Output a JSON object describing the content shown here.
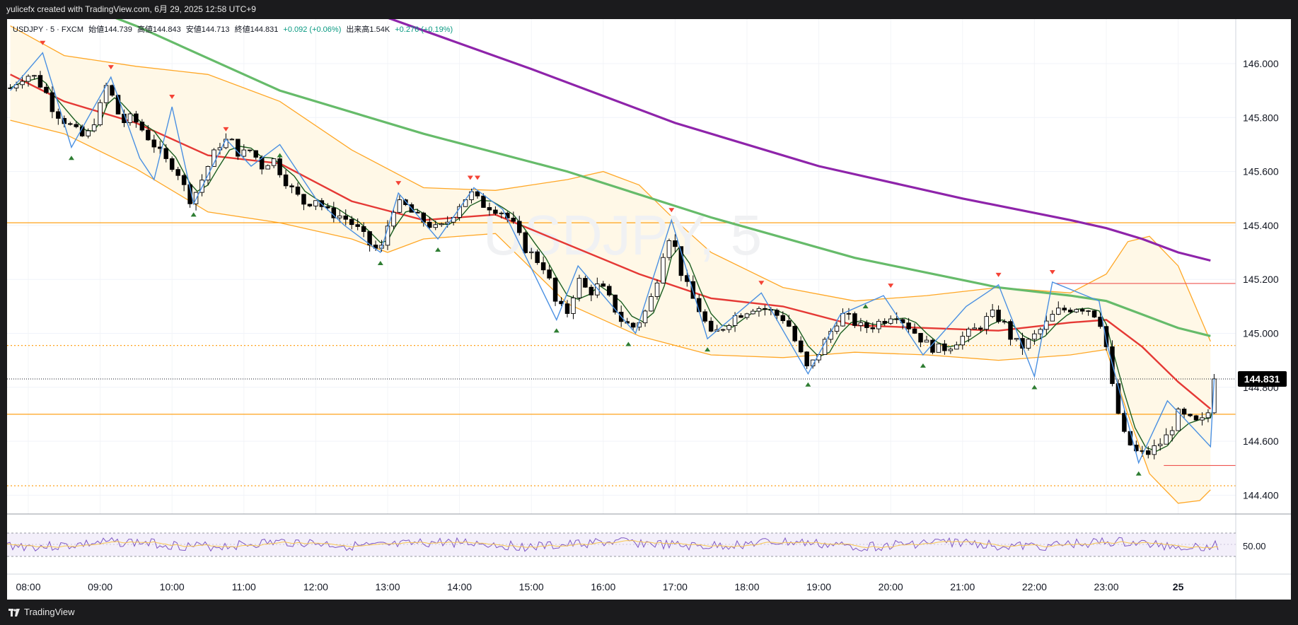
{
  "header": {
    "attribution": "yulicefx created with TradingView.com, 6月 29, 2025 12:58 UTC+9"
  },
  "legend": {
    "symbol": "USDJPY · 5 · FXCM",
    "open": "始値144.739",
    "high": "高値144.843",
    "low": "安値144.713",
    "close": "終値144.831",
    "change": "+0.092 (+0.06%)",
    "volume": "出来高1.54K",
    "volume_change": "+0.276 (+0.19%)"
  },
  "watermark": "USDJPY, 5",
  "footer": {
    "brand": "TradingView"
  },
  "last_price_label": "144.831",
  "rsi_label": "50.00",
  "colors": {
    "up_candle": "#ffffff",
    "down_candle": "#000000",
    "ma_fast": "#1b5e20",
    "ma_mid": "#e53935",
    "ma_slow": "#66bb6a",
    "ma_long": "#8e24aa",
    "bollinger": "#ffa726",
    "zigzag": "#4a90e2",
    "signal_up": "#2e7d32",
    "signal_down": "#f44336",
    "horizontal_level": "#ff9800"
  },
  "chart_data": {
    "type": "candlestick",
    "symbol": "USDJPY",
    "timeframe": "5",
    "x_ticks": [
      "08:00",
      "09:00",
      "10:00",
      "11:00",
      "12:00",
      "13:00",
      "14:00",
      "15:00",
      "16:00",
      "17:00",
      "18:00",
      "19:00",
      "20:00",
      "21:00",
      "22:00",
      "23:00",
      "25"
    ],
    "y_ticks": [
      146.0,
      145.8,
      145.6,
      145.4,
      145.2,
      145.0,
      144.8,
      144.6,
      144.4
    ],
    "y_tick_labels": [
      "146.000",
      "145.800",
      "145.600",
      "145.400",
      "145.200",
      "145.000",
      "144.800",
      "144.600",
      "144.400"
    ],
    "ylim": [
      144.34,
      146.2
    ],
    "xlim_hours": [
      7.7,
      24.9
    ],
    "last_price": 144.831,
    "horizontal_levels": [
      {
        "value": 145.41,
        "style": "solid"
      },
      {
        "value": 144.7,
        "style": "solid"
      },
      {
        "value": 144.955,
        "style": "dotted"
      },
      {
        "value": 144.435,
        "style": "dotted"
      },
      {
        "value": 145.185,
        "style": "solid-short"
      },
      {
        "value": 144.51,
        "style": "solid-short"
      }
    ],
    "close_path": [
      [
        7.75,
        145.91
      ],
      [
        7.9,
        145.95
      ],
      [
        8.05,
        145.96
      ],
      [
        8.15,
        145.93
      ],
      [
        8.25,
        145.89
      ],
      [
        8.35,
        145.83
      ],
      [
        8.5,
        145.79
      ],
      [
        8.65,
        145.75
      ],
      [
        8.8,
        145.72
      ],
      [
        8.9,
        145.78
      ],
      [
        9.0,
        145.84
      ],
      [
        9.1,
        145.93
      ],
      [
        9.2,
        145.85
      ],
      [
        9.3,
        145.78
      ],
      [
        9.45,
        145.8
      ],
      [
        9.6,
        145.75
      ],
      [
        9.75,
        145.7
      ],
      [
        9.9,
        145.64
      ],
      [
        10.05,
        145.62
      ],
      [
        10.15,
        145.55
      ],
      [
        10.25,
        145.5
      ],
      [
        10.35,
        145.53
      ],
      [
        10.5,
        145.62
      ],
      [
        10.65,
        145.7
      ],
      [
        10.8,
        145.72
      ],
      [
        10.95,
        145.66
      ],
      [
        11.1,
        145.68
      ],
      [
        11.25,
        145.62
      ],
      [
        11.4,
        145.65
      ],
      [
        11.55,
        145.58
      ],
      [
        11.7,
        145.52
      ],
      [
        11.85,
        145.48
      ],
      [
        12.0,
        145.5
      ],
      [
        12.15,
        145.45
      ],
      [
        12.3,
        145.44
      ],
      [
        12.45,
        145.42
      ],
      [
        12.6,
        145.38
      ],
      [
        12.75,
        145.33
      ],
      [
        12.9,
        145.3
      ],
      [
        13.0,
        145.4
      ],
      [
        13.1,
        145.48
      ],
      [
        13.25,
        145.47
      ],
      [
        13.4,
        145.43
      ],
      [
        13.55,
        145.41
      ],
      [
        13.7,
        145.38
      ],
      [
        13.85,
        145.42
      ],
      [
        14.0,
        145.48
      ],
      [
        14.15,
        145.52
      ],
      [
        14.3,
        145.48
      ],
      [
        14.45,
        145.47
      ],
      [
        14.6,
        145.45
      ],
      [
        14.75,
        145.4
      ],
      [
        14.9,
        145.32
      ],
      [
        15.05,
        145.28
      ],
      [
        15.2,
        145.24
      ],
      [
        15.35,
        145.1
      ],
      [
        15.5,
        145.08
      ],
      [
        15.65,
        145.2
      ],
      [
        15.8,
        145.15
      ],
      [
        15.95,
        145.18
      ],
      [
        16.1,
        145.12
      ],
      [
        16.25,
        145.05
      ],
      [
        16.4,
        145.02
      ],
      [
        16.55,
        145.06
      ],
      [
        16.7,
        145.15
      ],
      [
        16.85,
        145.32
      ],
      [
        16.95,
        145.38
      ],
      [
        17.05,
        145.25
      ],
      [
        17.2,
        145.15
      ],
      [
        17.35,
        145.08
      ],
      [
        17.5,
        144.99
      ],
      [
        17.65,
        145.02
      ],
      [
        17.8,
        145.06
      ],
      [
        17.95,
        145.08
      ],
      [
        18.1,
        145.1
      ],
      [
        18.25,
        145.09
      ],
      [
        18.4,
        145.07
      ],
      [
        18.55,
        145.05
      ],
      [
        18.7,
        144.95
      ],
      [
        18.85,
        144.86
      ],
      [
        19.0,
        144.93
      ],
      [
        19.15,
        145.0
      ],
      [
        19.3,
        145.07
      ],
      [
        19.45,
        145.05
      ],
      [
        19.6,
        145.02
      ],
      [
        19.75,
        145.03
      ],
      [
        19.9,
        145.05
      ],
      [
        20.05,
        145.08
      ],
      [
        20.2,
        145.04
      ],
      [
        20.35,
        145.0
      ],
      [
        20.5,
        144.96
      ],
      [
        20.65,
        144.94
      ],
      [
        20.8,
        144.95
      ],
      [
        20.95,
        144.98
      ],
      [
        21.1,
        145.0
      ],
      [
        21.25,
        145.03
      ],
      [
        21.4,
        145.07
      ],
      [
        21.55,
        145.05
      ],
      [
        21.7,
        144.97
      ],
      [
        21.85,
        144.95
      ],
      [
        22.0,
        144.99
      ],
      [
        22.15,
        145.03
      ],
      [
        22.3,
        145.08
      ],
      [
        22.45,
        145.09
      ],
      [
        22.6,
        145.1
      ],
      [
        22.75,
        145.09
      ],
      [
        22.9,
        145.06
      ],
      [
        23.0,
        144.95
      ],
      [
        23.1,
        144.77
      ],
      [
        23.25,
        144.62
      ],
      [
        23.4,
        144.56
      ],
      [
        23.55,
        144.55
      ],
      [
        23.7,
        144.58
      ],
      [
        23.85,
        144.62
      ],
      [
        24.0,
        144.7
      ],
      [
        24.15,
        144.68
      ],
      [
        24.3,
        144.66
      ],
      [
        24.45,
        144.72
      ],
      [
        24.5,
        144.831
      ]
    ],
    "ma_mid": [
      [
        7.75,
        145.96
      ],
      [
        8.5,
        145.86
      ],
      [
        9.5,
        145.78
      ],
      [
        10.5,
        145.66
      ],
      [
        11.5,
        145.63
      ],
      [
        12.5,
        145.49
      ],
      [
        13.5,
        145.42
      ],
      [
        14.5,
        145.44
      ],
      [
        15.5,
        145.33
      ],
      [
        16.5,
        145.22
      ],
      [
        17.5,
        145.13
      ],
      [
        18.5,
        145.1
      ],
      [
        19.5,
        145.03
      ],
      [
        20.5,
        145.02
      ],
      [
        21.5,
        145.01
      ],
      [
        22.5,
        145.04
      ],
      [
        23.0,
        145.05
      ],
      [
        23.5,
        144.95
      ],
      [
        24.0,
        144.82
      ],
      [
        24.45,
        144.72
      ]
    ],
    "ma_slow": [
      [
        7.75,
        146.32
      ],
      [
        9.5,
        146.14
      ],
      [
        11.5,
        145.9
      ],
      [
        13.5,
        145.74
      ],
      [
        15.5,
        145.6
      ],
      [
        17.5,
        145.43
      ],
      [
        19.5,
        145.28
      ],
      [
        21.5,
        145.17
      ],
      [
        22.5,
        145.14
      ],
      [
        23.0,
        145.12
      ],
      [
        23.5,
        145.07
      ],
      [
        24.0,
        145.02
      ],
      [
        24.45,
        144.99
      ]
    ],
    "ma_long": [
      [
        11.0,
        146.35
      ],
      [
        13.0,
        146.17
      ],
      [
        15.0,
        145.98
      ],
      [
        17.0,
        145.78
      ],
      [
        19.0,
        145.62
      ],
      [
        21.0,
        145.5
      ],
      [
        22.5,
        145.42
      ],
      [
        23.0,
        145.39
      ],
      [
        23.5,
        145.35
      ],
      [
        24.0,
        145.3
      ],
      [
        24.45,
        145.27
      ]
    ],
    "bb_upper": [
      [
        7.75,
        146.14
      ],
      [
        8.5,
        146.03
      ],
      [
        9.5,
        145.99
      ],
      [
        10.5,
        145.96
      ],
      [
        11.5,
        145.86
      ],
      [
        12.5,
        145.68
      ],
      [
        13.5,
        145.54
      ],
      [
        14.5,
        145.53
      ],
      [
        15.5,
        145.57
      ],
      [
        16.0,
        145.6
      ],
      [
        16.5,
        145.55
      ],
      [
        17.0,
        145.42
      ],
      [
        17.5,
        145.3
      ],
      [
        18.5,
        145.17
      ],
      [
        19.5,
        145.12
      ],
      [
        20.5,
        145.14
      ],
      [
        21.5,
        145.17
      ],
      [
        22.5,
        145.15
      ],
      [
        23.0,
        145.22
      ],
      [
        23.3,
        145.34
      ],
      [
        23.6,
        145.36
      ],
      [
        24.0,
        145.25
      ],
      [
        24.45,
        144.97
      ]
    ],
    "bb_lower": [
      [
        7.75,
        145.79
      ],
      [
        8.5,
        145.74
      ],
      [
        9.5,
        145.61
      ],
      [
        10.5,
        145.45
      ],
      [
        11.5,
        145.41
      ],
      [
        12.5,
        145.35
      ],
      [
        13.0,
        145.3
      ],
      [
        13.5,
        145.35
      ],
      [
        14.5,
        145.37
      ],
      [
        15.5,
        145.11
      ],
      [
        16.5,
        144.99
      ],
      [
        17.5,
        144.92
      ],
      [
        18.5,
        144.91
      ],
      [
        19.5,
        144.93
      ],
      [
        20.5,
        144.92
      ],
      [
        21.5,
        144.9
      ],
      [
        22.5,
        144.92
      ],
      [
        23.0,
        144.94
      ],
      [
        23.3,
        144.7
      ],
      [
        23.6,
        144.48
      ],
      [
        24.0,
        144.37
      ],
      [
        24.3,
        144.38
      ],
      [
        24.45,
        144.42
      ]
    ],
    "zigzag": [
      [
        7.75,
        145.9
      ],
      [
        8.2,
        146.04
      ],
      [
        8.6,
        145.69
      ],
      [
        9.15,
        145.95
      ],
      [
        9.55,
        145.65
      ],
      [
        9.75,
        145.57
      ],
      [
        10.0,
        145.84
      ],
      [
        10.3,
        145.48
      ],
      [
        10.75,
        145.72
      ],
      [
        11.1,
        145.62
      ],
      [
        11.5,
        145.7
      ],
      [
        12.0,
        145.5
      ],
      [
        12.4,
        145.4
      ],
      [
        12.9,
        145.3
      ],
      [
        13.15,
        145.52
      ],
      [
        13.7,
        145.35
      ],
      [
        14.2,
        145.54
      ],
      [
        14.6,
        145.46
      ],
      [
        15.35,
        145.05
      ],
      [
        15.65,
        145.25
      ],
      [
        16.45,
        145.0
      ],
      [
        16.95,
        145.42
      ],
      [
        17.45,
        144.98
      ],
      [
        18.2,
        145.15
      ],
      [
        18.85,
        144.85
      ],
      [
        19.3,
        145.07
      ],
      [
        19.9,
        145.14
      ],
      [
        20.45,
        144.92
      ],
      [
        21.05,
        145.1
      ],
      [
        21.5,
        145.18
      ],
      [
        22.0,
        144.84
      ],
      [
        22.25,
        145.19
      ],
      [
        22.9,
        145.12
      ],
      [
        23.0,
        144.97
      ],
      [
        23.45,
        144.52
      ],
      [
        23.85,
        144.75
      ],
      [
        24.1,
        144.68
      ],
      [
        24.45,
        144.58
      ],
      [
        24.5,
        144.831
      ]
    ],
    "signal_down": [
      8.2,
      9.15,
      10.0,
      10.75,
      13.15,
      14.15,
      14.25,
      16.95,
      18.2,
      20.0,
      21.5,
      22.25
    ],
    "signal_up": [
      8.6,
      10.3,
      11.5,
      12.9,
      13.7,
      15.35,
      16.35,
      17.45,
      18.85,
      19.65,
      20.45,
      22.0,
      23.45
    ],
    "rsi_reference": 50.0
  }
}
